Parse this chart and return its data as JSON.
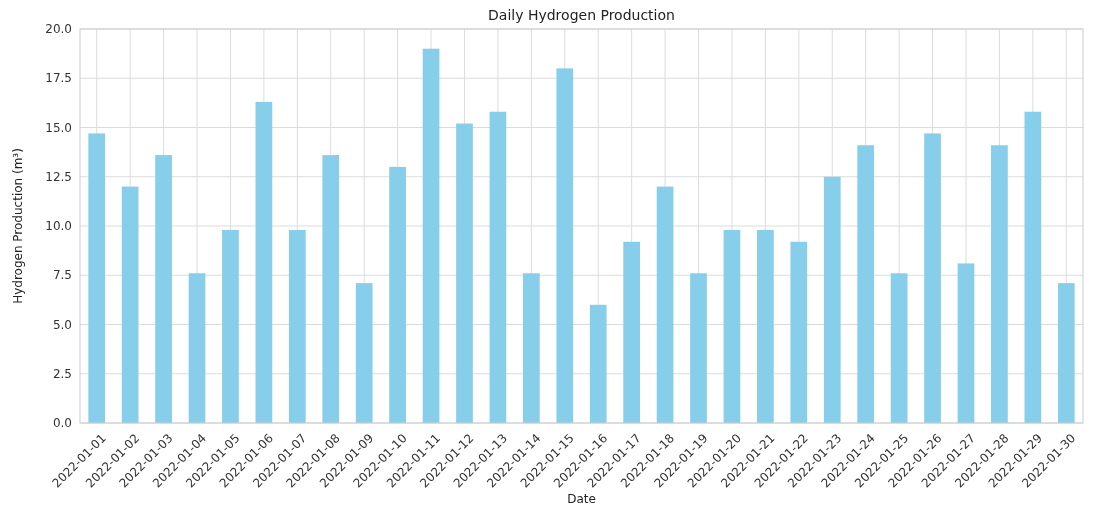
{
  "chart_data": {
    "type": "bar",
    "title": "Daily Hydrogen Production",
    "xlabel": "Date",
    "ylabel": "Hydrogen Production (m³)",
    "categories": [
      "2022-01-01",
      "2022-01-02",
      "2022-01-03",
      "2022-01-04",
      "2022-01-05",
      "2022-01-06",
      "2022-01-07",
      "2022-01-08",
      "2022-01-09",
      "2022-01-10",
      "2022-01-11",
      "2022-01-12",
      "2022-01-13",
      "2022-01-14",
      "2022-01-15",
      "2022-01-16",
      "2022-01-17",
      "2022-01-18",
      "2022-01-19",
      "2022-01-20",
      "2022-01-21",
      "2022-01-22",
      "2022-01-23",
      "2022-01-24",
      "2022-01-25",
      "2022-01-26",
      "2022-01-27",
      "2022-01-28",
      "2022-01-29",
      "2022-01-30"
    ],
    "values": [
      14.7,
      12.0,
      13.6,
      7.6,
      9.8,
      16.3,
      9.8,
      13.6,
      7.1,
      13.0,
      19.0,
      15.2,
      15.8,
      7.6,
      18.0,
      6.0,
      9.2,
      12.0,
      7.6,
      9.8,
      9.8,
      9.2,
      12.5,
      14.1,
      7.6,
      14.7,
      8.1,
      14.1,
      15.8,
      7.1
    ],
    "color": "#87ceeb",
    "ylim": [
      0,
      20
    ],
    "yticks": [
      {
        "value": 0,
        "label": "0.0"
      },
      2.5,
      {
        "value": 5,
        "label": "5.0"
      },
      7.5,
      {
        "value": 10,
        "label": "10.0"
      },
      12.5,
      {
        "value": 15,
        "label": "15.0"
      },
      17.5,
      {
        "value": 20,
        "label": "20.0"
      }
    ],
    "grid": true
  }
}
